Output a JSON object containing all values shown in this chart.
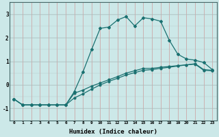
{
  "xlabel": "Humidex (Indice chaleur)",
  "bg_color": "#cce8e8",
  "grid_color": "#b0c8c8",
  "line_color": "#1a7070",
  "xlim": [
    -0.5,
    23.5
  ],
  "ylim": [
    -1.5,
    3.5
  ],
  "yticks": [
    -1,
    0,
    1,
    2,
    3
  ],
  "xticks": [
    0,
    1,
    2,
    3,
    4,
    5,
    6,
    7,
    8,
    9,
    10,
    11,
    12,
    13,
    14,
    15,
    16,
    17,
    18,
    19,
    20,
    21,
    22,
    23
  ],
  "curve_main_x": [
    0,
    1,
    2,
    3,
    4,
    5,
    6,
    7,
    8,
    9,
    10,
    11,
    12,
    13,
    14,
    15,
    16,
    17,
    18,
    19,
    20,
    21,
    22,
    23
  ],
  "curve_main_y": [
    -0.6,
    -0.85,
    -0.85,
    -0.85,
    -0.85,
    -0.85,
    -0.85,
    -0.28,
    0.55,
    1.5,
    2.4,
    2.45,
    2.75,
    2.9,
    2.5,
    2.85,
    2.8,
    2.7,
    1.9,
    1.3,
    1.1,
    1.05,
    0.95,
    0.65
  ],
  "curve_low1_x": [
    0,
    1,
    2,
    3,
    4,
    5,
    6,
    7,
    8,
    9,
    10,
    11,
    12,
    13,
    14,
    15,
    16,
    17,
    18,
    19,
    20,
    21,
    22,
    23
  ],
  "curve_low1_y": [
    -0.6,
    -0.85,
    -0.85,
    -0.85,
    -0.85,
    -0.85,
    -0.85,
    -0.55,
    -0.38,
    -0.18,
    0.0,
    0.15,
    0.28,
    0.42,
    0.52,
    0.62,
    0.65,
    0.7,
    0.75,
    0.8,
    0.85,
    0.88,
    0.62,
    0.6
  ],
  "curve_low2_x": [
    0,
    1,
    2,
    3,
    4,
    5,
    6,
    7,
    8,
    9,
    10,
    11,
    12,
    13,
    14,
    15,
    16,
    17,
    18,
    19,
    20,
    21,
    22,
    23
  ],
  "curve_low2_y": [
    -0.6,
    -0.85,
    -0.85,
    -0.85,
    -0.85,
    -0.85,
    -0.85,
    -0.35,
    -0.22,
    -0.05,
    0.08,
    0.22,
    0.35,
    0.5,
    0.6,
    0.7,
    0.7,
    0.75,
    0.78,
    0.82,
    0.85,
    0.9,
    0.65,
    0.62
  ]
}
